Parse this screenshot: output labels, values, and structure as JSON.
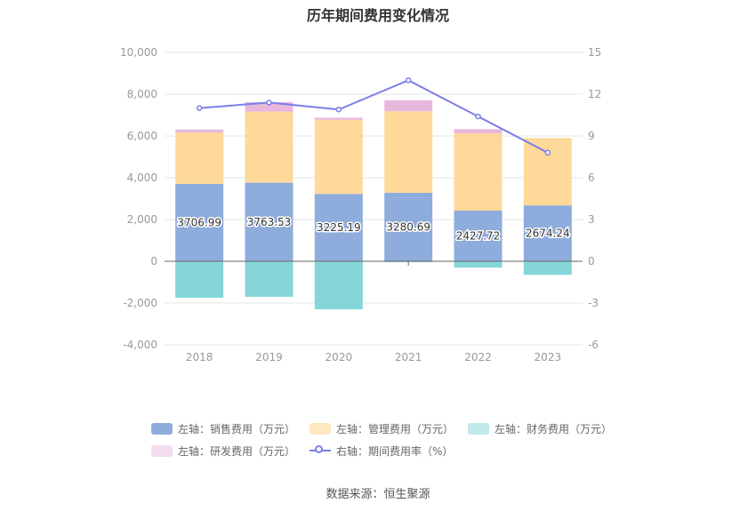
{
  "page": {
    "title": "历年期间费用变化情况",
    "source": "数据来源：恒生聚源"
  },
  "chart_data": {
    "type": "bar",
    "stacked": true,
    "title": "历年期间费用变化情况",
    "categories": [
      "2018",
      "2019",
      "2020",
      "2021",
      "2022",
      "2023"
    ],
    "y_left": {
      "min": -4000,
      "max": 10000,
      "step": 2000,
      "ticks": [
        "10,000",
        "8,000",
        "6,000",
        "4,000",
        "2,000",
        "0",
        "-2,000",
        "-4,000"
      ]
    },
    "y_right": {
      "min": -6,
      "max": 15,
      "step": 3,
      "ticks": [
        "15",
        "12",
        "9",
        "6",
        "3",
        "0",
        "-3",
        "-6"
      ]
    },
    "series": [
      {
        "name": "左轴：销售费用（万元）",
        "color": "#8eacdc",
        "axis": "left",
        "type": "bar",
        "values": [
          3706.99,
          3763.53,
          3225.19,
          3280.69,
          2427.72,
          2674.24
        ],
        "labels": [
          "3706.99",
          "3763.53",
          "3225.19",
          "3280.69",
          "2427.72",
          "2674.24"
        ]
      },
      {
        "name": "左轴：管理费用（万元）",
        "color": "#ffd99a",
        "legend_color": "#ffe7bf",
        "axis": "left",
        "type": "bar",
        "values": [
          2450,
          3400,
          3550,
          3900,
          3700,
          3230
        ]
      },
      {
        "name": "左轴：财务费用（万元）",
        "color": "#86d6d8",
        "legend_color": "#bfe9ea",
        "axis": "left",
        "type": "bar",
        "values": [
          -1750,
          -1700,
          -2300,
          -40,
          -300,
          -650
        ]
      },
      {
        "name": "左轴：研发费用（万元）",
        "color": "#e8b8dc",
        "legend_color": "#f2dcee",
        "axis": "left",
        "type": "bar",
        "values": [
          150,
          460,
          100,
          530,
          200,
          0
        ]
      },
      {
        "name": "右轴：期间费用率（%）",
        "color": "#7b7fe8",
        "axis": "right",
        "type": "line",
        "values": [
          11.0,
          11.4,
          10.9,
          13.0,
          10.4,
          7.8
        ]
      }
    ],
    "legend_position": "bottom"
  }
}
